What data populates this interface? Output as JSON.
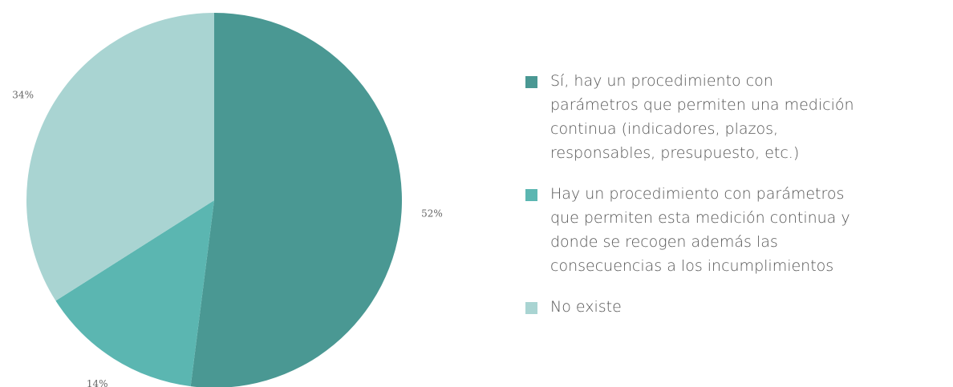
{
  "chart_data": {
    "type": "pie",
    "categories": [
      "Sí, hay un procedimiento con parámetros que permiten una medición continua (indicadores, plazos, responsables, presupuesto, etc.)",
      "Hay un procedimiento con parámetros que permiten esta medición continua y donde se recogen además las consecuencias a los incumplimientos",
      "No existe"
    ],
    "values": [
      52,
      14,
      34
    ],
    "value_labels": [
      "52%",
      "14%",
      "34%"
    ],
    "colors": [
      "#4a9893",
      "#5bb6b1",
      "#a9d4d2"
    ],
    "legend": "right"
  }
}
